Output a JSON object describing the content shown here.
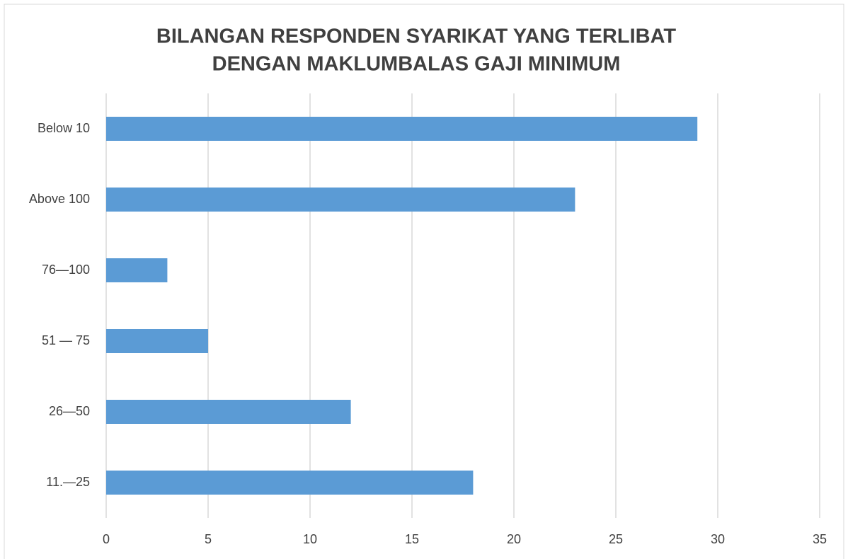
{
  "chart_data": {
    "type": "bar",
    "orientation": "horizontal",
    "title": [
      "BILANGAN RESPONDEN SYARIKAT YANG TERLIBAT",
      "DENGAN MAKLUMBALAS GAJI MINIMUM"
    ],
    "categories": [
      "Below 10",
      "Above 100",
      "76—100",
      "51 — 75",
      "26—50",
      "11.—25"
    ],
    "values": [
      29,
      23,
      3,
      5,
      12,
      18
    ],
    "color": "#5b9bd5",
    "xlim": [
      0,
      35
    ],
    "xticks": [
      0,
      5,
      10,
      15,
      20,
      25,
      30,
      35
    ],
    "grid": true
  }
}
